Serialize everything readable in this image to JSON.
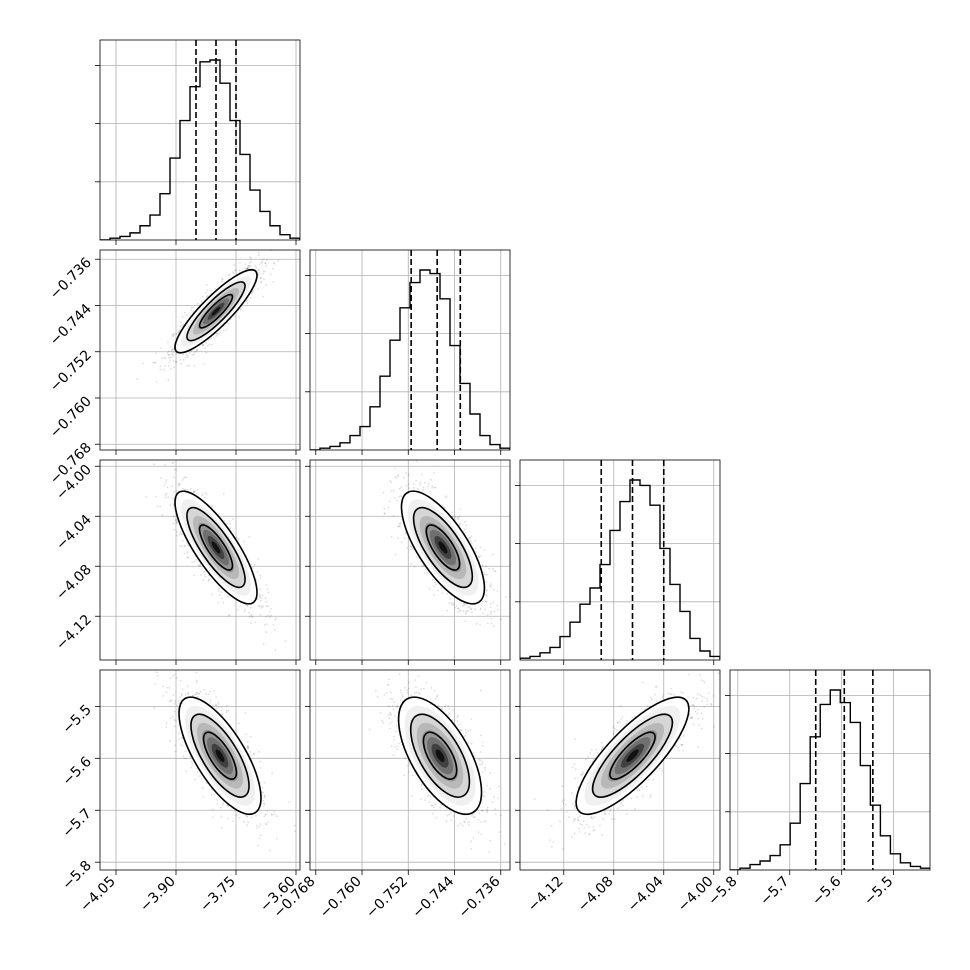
{
  "chart_data": {
    "type": "corner",
    "grid": true,
    "parameters": [
      {
        "ticks": [
          -4.05,
          -3.9,
          -3.75,
          -3.6
        ],
        "tick_labels": [
          "−4.05",
          "−3.90",
          "−3.75",
          "−3.60"
        ],
        "range": [
          -4.09,
          -3.59
        ]
      },
      {
        "ticks": [
          -0.768,
          -0.76,
          -0.752,
          -0.744,
          -0.736
        ],
        "tick_labels": [
          "−0.768",
          "−0.760",
          "−0.752",
          "−0.744",
          "−0.736"
        ],
        "range": [
          -0.769,
          -0.7344
        ]
      },
      {
        "ticks": [
          -4.12,
          -4.08,
          -4.04,
          -4.0
        ],
        "tick_labels": [
          "−4.12",
          "−4.08",
          "−4.04",
          "−4.00"
        ],
        "range": [
          -4.155,
          -3.995
        ]
      },
      {
        "ticks": [
          -5.8,
          -5.7,
          -5.6,
          -5.5
        ],
        "tick_labels": [
          "−5.8",
          "−5.7",
          "−5.6",
          "−5.5"
        ],
        "range": [
          -5.815,
          -5.43
        ]
      }
    ],
    "histograms": [
      {
        "param": 0,
        "bin_edges_start": -4.09,
        "bin_width": 0.025,
        "counts": [
          0,
          1,
          2,
          4,
          8,
          14,
          26,
          46,
          67,
          86,
          100,
          101,
          88,
          67,
          48,
          28,
          16,
          8,
          3,
          1
        ],
        "quantile_lines": [
          -3.85,
          -3.8,
          -3.75
        ]
      },
      {
        "param": 1,
        "bin_edges_start": -0.769,
        "bin_width": 0.00173,
        "counts": [
          0,
          1,
          2,
          4,
          8,
          13,
          24,
          41,
          61,
          79,
          93,
          100,
          98,
          84,
          58,
          37,
          20,
          8,
          3,
          1
        ],
        "quantile_lines": [
          -0.7515,
          -0.747,
          -0.743
        ]
      },
      {
        "param": 2,
        "bin_edges_start": -4.155,
        "bin_width": 0.008,
        "counts": [
          1,
          2,
          4,
          7,
          13,
          21,
          31,
          40,
          53,
          72,
          88,
          100,
          97,
          86,
          62,
          42,
          27,
          12,
          5,
          2
        ],
        "quantile_lines": [
          -4.09,
          -4.065,
          -4.04
        ]
      },
      {
        "param": 3,
        "bin_edges_start": -5.815,
        "bin_width": 0.0193,
        "counts": [
          0,
          1,
          3,
          5,
          8,
          14,
          26,
          48,
          74,
          92,
          100,
          93,
          82,
          58,
          36,
          19,
          9,
          4,
          2,
          1
        ],
        "quantile_lines": [
          -5.65,
          -5.595,
          -5.54
        ]
      }
    ],
    "pairs": [
      {
        "x": 0,
        "y": 1,
        "mean": [
          -3.8,
          -0.745
        ],
        "sd": [
          0.05,
          0.0035
        ],
        "corr": 0.87
      },
      {
        "x": 0,
        "y": 2,
        "mean": [
          -3.8,
          -4.065
        ],
        "sd": [
          0.05,
          0.022
        ],
        "corr": -0.8
      },
      {
        "x": 1,
        "y": 2,
        "mean": [
          -0.746,
          -4.065
        ],
        "sd": [
          0.0035,
          0.022
        ],
        "corr": -0.72
      },
      {
        "x": 0,
        "y": 3,
        "mean": [
          -3.79,
          -5.595
        ],
        "sd": [
          0.05,
          0.055
        ],
        "corr": -0.72
      },
      {
        "x": 1,
        "y": 3,
        "mean": [
          -0.7465,
          -5.595
        ],
        "sd": [
          0.0035,
          0.055
        ],
        "corr": -0.62
      },
      {
        "x": 2,
        "y": 3,
        "mean": [
          -4.065,
          -5.595
        ],
        "sd": [
          0.022,
          0.055
        ],
        "corr": 0.8
      }
    ]
  }
}
